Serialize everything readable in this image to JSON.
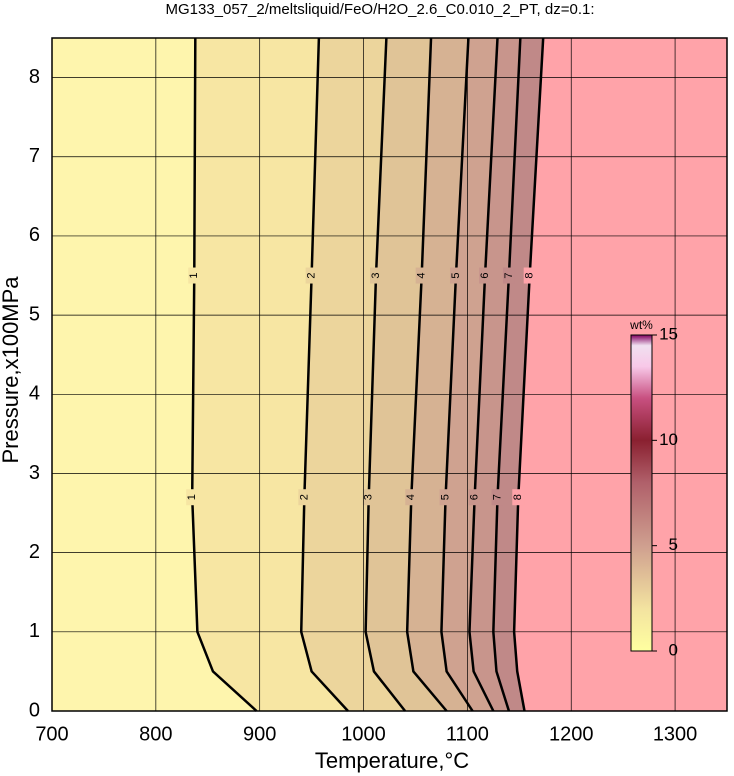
{
  "chart_data": {
    "type": "contour",
    "title": "MG133_057_2/meltsliquid/FeO/H2O_2.6_C0.010_2_PT, dz=0.1:",
    "xlabel": "Temperature,°C",
    "ylabel": "Pressure,x100MPa",
    "xlim": [
      700,
      1350
    ],
    "ylim": [
      0,
      8.5
    ],
    "xticks": [
      700,
      800,
      900,
      1000,
      1100,
      1200,
      1300
    ],
    "yticks": [
      0,
      1,
      2,
      3,
      4,
      5,
      6,
      7,
      8
    ],
    "grid": true,
    "fill_low": "#fef5ad",
    "contours": [
      {
        "level": 1,
        "fill": "#f7e6a3",
        "pressure": [
          0,
          0.5,
          1,
          2.7,
          5.5,
          8.5
        ],
        "temperature": [
          897,
          855,
          840,
          835,
          837,
          838
        ]
      },
      {
        "level": 2,
        "fill": "#ecd59c",
        "pressure": [
          0,
          0.5,
          1,
          2.7,
          5.5,
          8.5
        ],
        "temperature": [
          985,
          950,
          940,
          943,
          950,
          957
        ]
      },
      {
        "level": 3,
        "fill": "#e0c497",
        "pressure": [
          0,
          0.5,
          1,
          2.7,
          5.5,
          8.5
        ],
        "temperature": [
          1040,
          1010,
          1002,
          1005,
          1012,
          1022
        ]
      },
      {
        "level": 4,
        "fill": "#d6b293",
        "pressure": [
          0,
          0.5,
          1,
          2.7,
          5.5,
          8.5
        ],
        "temperature": [
          1080,
          1048,
          1042,
          1046,
          1056,
          1065
        ]
      },
      {
        "level": 5,
        "fill": "#cfa290",
        "pressure": [
          0,
          0.5,
          1,
          2.7,
          5.5,
          8.5
        ],
        "temperature": [
          1105,
          1080,
          1075,
          1079,
          1089,
          1101
        ]
      },
      {
        "level": 6,
        "fill": "#c8958c",
        "pressure": [
          0,
          0.5,
          1,
          2.7,
          5.5,
          8.5
        ],
        "temperature": [
          1125,
          1106,
          1102,
          1107,
          1117,
          1129
        ]
      },
      {
        "level": 7,
        "fill": "#c08988",
        "pressure": [
          0,
          0.5,
          1,
          2.7,
          5.5,
          8.5
        ],
        "temperature": [
          1140,
          1128,
          1125,
          1129,
          1140,
          1151
        ]
      },
      {
        "level": 8,
        "fill": "#ffa3a9",
        "pressure": [
          0,
          0.5,
          1,
          2.7,
          5.5,
          8.5
        ],
        "temperature": [
          1155,
          1148,
          1145,
          1149,
          1160,
          1173
        ]
      }
    ],
    "colorbar": {
      "label": "wt%",
      "clim": [
        0,
        15
      ],
      "ticks": [
        0,
        5,
        10,
        15
      ],
      "colorscale": [
        [
          0,
          "#ffffa0"
        ],
        [
          2,
          "#f3e3a0"
        ],
        [
          5,
          "#cf9f8f"
        ],
        [
          8,
          "#b0606a"
        ],
        [
          10,
          "#8a2030"
        ],
        [
          12,
          "#c85080"
        ],
        [
          13.5,
          "#f8c8e8"
        ],
        [
          14.5,
          "#f0e0f0"
        ],
        [
          15,
          "#800060"
        ]
      ]
    }
  }
}
